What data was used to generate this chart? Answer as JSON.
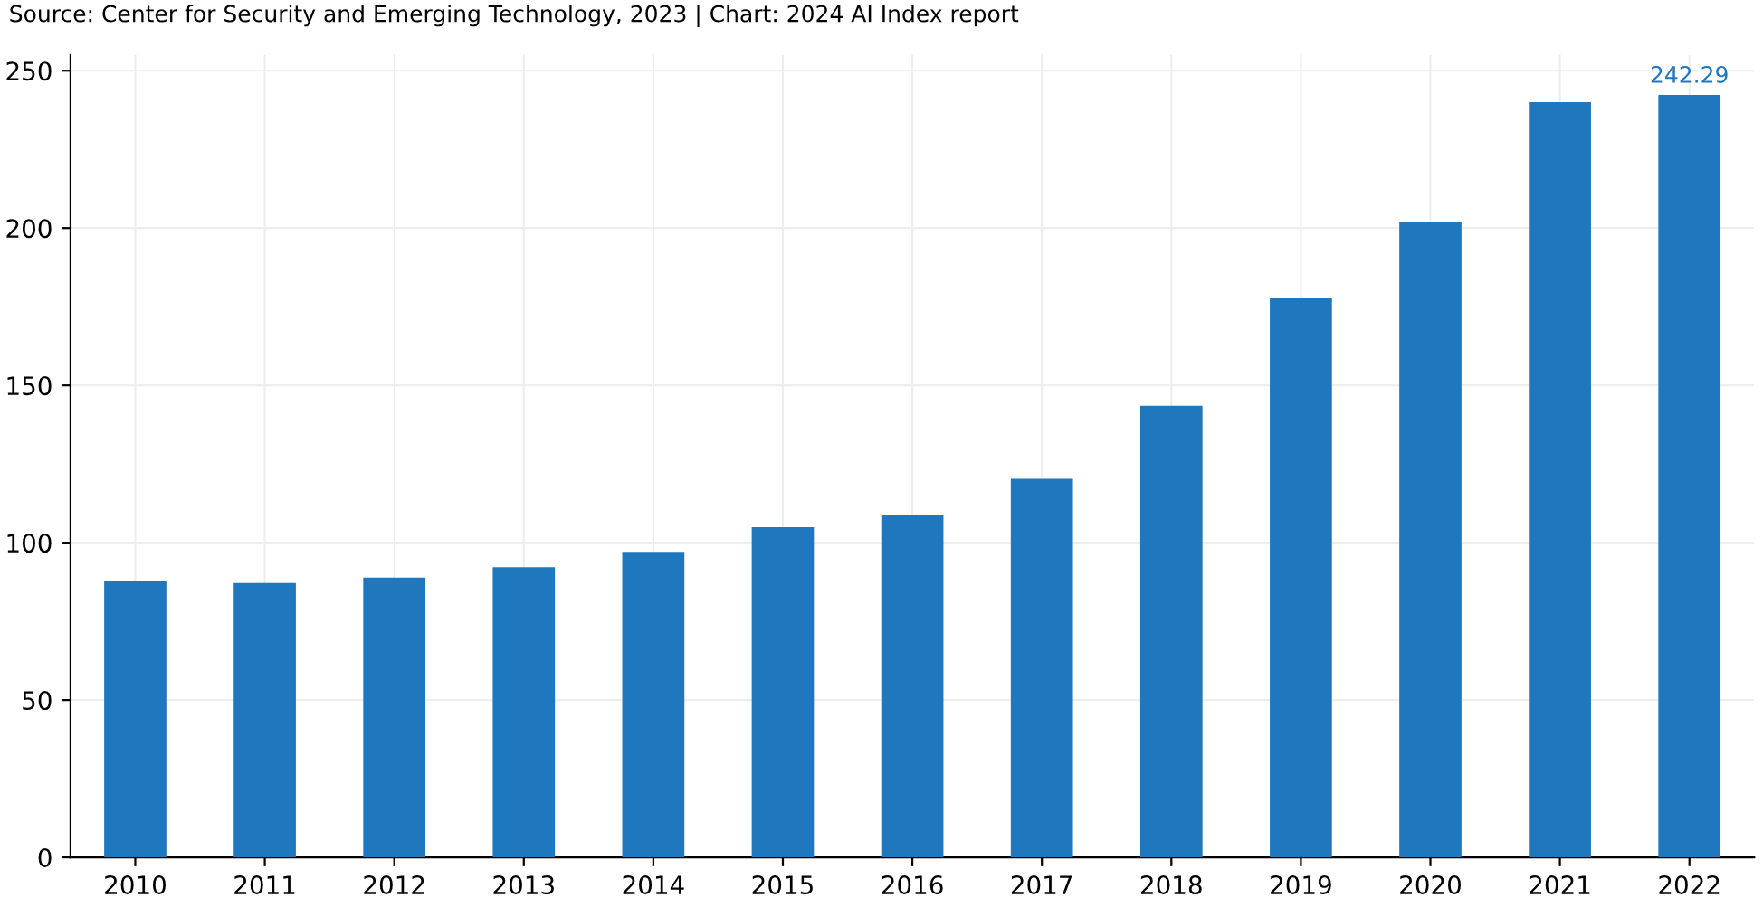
{
  "chart_data": {
    "type": "bar",
    "annotations": [
      "Source: Center for Security and Emerging Technology, 2023 | Chart: 2024 AI Index report"
    ],
    "categories": [
      "2010",
      "2011",
      "2012",
      "2013",
      "2014",
      "2015",
      "2016",
      "2017",
      "2018",
      "2019",
      "2020",
      "2021",
      "2022"
    ],
    "values": [
      87.7,
      87.2,
      88.9,
      92.2,
      97.1,
      104.9,
      108.7,
      120.3,
      143.5,
      177.7,
      202,
      240,
      242.29
    ],
    "value_labels": [
      null,
      null,
      null,
      null,
      null,
      null,
      null,
      null,
      null,
      null,
      null,
      null,
      "242.29"
    ],
    "color": "#1f77bd",
    "ylim": [
      0,
      255
    ],
    "yticks": [
      0,
      50,
      100,
      150,
      200,
      250
    ],
    "grid": true
  }
}
